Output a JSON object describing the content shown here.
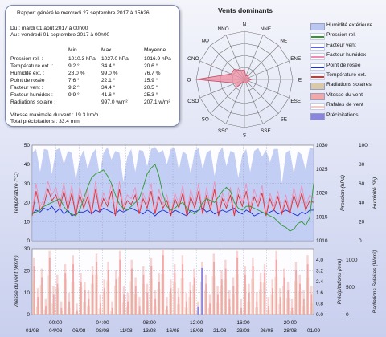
{
  "report": {
    "generated": "Rapport généré le mercredi 27 septembre 2017 à 15h26",
    "from": "Du : mardi 01 août 2017 à 00h00",
    "to": "Au : vendredi 01 septembre 2017 à 00h00",
    "col_min": "Min",
    "col_max": "Max",
    "col_avg": "Moyenne",
    "rows": [
      {
        "label": "Pression rel. :",
        "min": "1010.3 hPa",
        "max": "1027.0 hPa",
        "avg": "1016.9 hPa"
      },
      {
        "label": "Température ext. :",
        "min": "9.2 °",
        "max": "34.4 °",
        "avg": "20.6 °"
      },
      {
        "label": "Humidité ext. :",
        "min": "28.0 %",
        "max": "99.0 %",
        "avg": "76.7 %"
      },
      {
        "label": "Point de rosée :",
        "min": "7.6 °",
        "max": "22.1 °",
        "avg": "15.9 °"
      },
      {
        "label": "Facteur vent :",
        "min": "9.2 °",
        "max": "34.4 °",
        "avg": "20.5 °"
      },
      {
        "label": "Facteur humidex :",
        "min": "9.9 °",
        "max": "41.6 °",
        "avg": "25.3 °"
      },
      {
        "label": "Radiations solaire :",
        "min": "",
        "max": "997.0 w/m²",
        "avg": "207.1 w/m²"
      }
    ],
    "wind_max": "Vitesse maximale du vent : 19.3 km/h",
    "rain_total": "Total précipitations : 33.4 mm"
  },
  "colors": {
    "humidity": "#b9c6f2",
    "pressure": "#2f9a2f",
    "windchill": "#5a63d8",
    "humidex": "#f08cb4",
    "dewpoint": "#1c2fd0",
    "temperature": "#e03030",
    "solar": "#d9c9a6",
    "wind": "#f3a8a8",
    "gusts": "#f6c8c8",
    "rain": "#8a86e0",
    "rose_fill": "#f08ca0"
  },
  "legend": [
    {
      "label": "Humidité extérieure",
      "color": "#b9c6f2",
      "kind": "box"
    },
    {
      "label": "Pression rel.",
      "color": "#2f9a2f",
      "kind": "line"
    },
    {
      "label": "Facteur vent",
      "color": "#5a63d8",
      "kind": "line"
    },
    {
      "label": "Facteur humidex",
      "color": "#f08cb4",
      "kind": "line"
    },
    {
      "label": "Point de rosée",
      "color": "#1c2fd0",
      "kind": "line"
    },
    {
      "label": "Température ext.",
      "color": "#e03030",
      "kind": "line"
    },
    {
      "label": "Radiations solaires",
      "color": "#d9c9a6",
      "kind": "box"
    },
    {
      "label": "Vitesse du vent",
      "color": "#f3a8a8",
      "kind": "box"
    },
    {
      "label": "Rafales de vent",
      "color": "#f6c8c8",
      "kind": "line"
    },
    {
      "label": "Précipitations",
      "color": "#8a86e0",
      "kind": "box"
    }
  ],
  "chart_data": [
    {
      "type": "radar",
      "title": "Vents dominants",
      "categories": [
        "N",
        "NNE",
        "NE",
        "ENE",
        "E",
        "ESE",
        "SE",
        "SSE",
        "S",
        "SSO",
        "SO",
        "OSO",
        "O",
        "ONO",
        "NO",
        "NNO"
      ],
      "values": [
        8,
        3,
        5,
        3,
        6,
        3,
        4,
        3,
        3,
        2,
        10,
        8,
        40,
        12,
        12,
        8
      ],
      "rmax": 40
    },
    {
      "type": "line",
      "x_ticks": [
        "01/08",
        "04/08",
        "06/08",
        "08/08",
        "11/08",
        "13/08",
        "16/08",
        "18/08",
        "21/08",
        "23/08",
        "26/08",
        "28/08",
        "01/09"
      ],
      "x_time_labels": [
        "00:00",
        "04:00",
        "08:00",
        "12:00",
        "16:00",
        "20:00"
      ],
      "y_left": {
        "label": "Température (°C)",
        "range": [
          0,
          50
        ],
        "ticks": [
          "0",
          "10",
          "20",
          "30",
          "40",
          "50"
        ]
      },
      "y_right1": {
        "label": "Pression (hPa)",
        "range": [
          1010,
          1030
        ],
        "ticks": [
          "1010",
          "1015",
          "1020",
          "1025",
          "1030"
        ]
      },
      "y_right2": {
        "label": "Humidité (%)",
        "range": [
          0,
          100
        ],
        "ticks": [
          "0",
          "20",
          "40",
          "60",
          "80",
          "100"
        ]
      },
      "series": [
        {
          "name": "Humidité extérieure",
          "values": [
            92,
            96,
            72,
            96,
            95,
            70,
            95,
            97,
            80,
            94,
            92,
            64,
            86,
            95,
            75,
            90,
            96,
            70,
            92,
            98,
            85,
            94,
            92,
            62,
            88,
            96,
            72,
            95,
            94,
            78,
            96,
            98,
            92,
            95,
            80,
            96,
            97,
            74,
            94,
            90,
            70,
            94,
            97,
            75,
            92,
            95,
            68,
            92,
            98,
            78,
            94,
            92,
            66,
            90,
            96,
            72,
            94,
            97,
            88,
            95,
            82,
            96,
            96,
            60,
            92,
            95,
            70,
            94,
            90,
            74,
            98,
            96
          ]
        },
        {
          "name": "Pression rel.",
          "values": [
            14,
            15,
            16,
            18,
            19,
            20,
            21,
            22,
            18,
            15,
            14,
            13,
            16,
            22,
            28,
            33,
            35,
            36,
            37,
            34,
            30,
            24,
            19,
            17,
            16,
            18,
            20,
            22,
            28,
            35,
            38,
            40,
            34,
            24,
            18,
            16,
            17,
            19,
            20,
            17,
            15,
            14,
            16,
            20,
            22,
            21,
            20,
            23,
            26,
            28,
            26,
            20,
            17,
            16,
            18,
            18,
            17,
            16,
            15,
            14,
            13,
            12,
            10,
            8,
            7,
            5,
            6,
            9,
            10,
            8,
            12,
            30
          ]
        },
        {
          "name": "Température ext.",
          "values": [
            13,
            26,
            16,
            19,
            27,
            21,
            24,
            17,
            26,
            16,
            25,
            13,
            24,
            17,
            23,
            14,
            27,
            15,
            22,
            18,
            26,
            13,
            27,
            16,
            21,
            19,
            24,
            14,
            22,
            17,
            26,
            14,
            23,
            17,
            21,
            13,
            22,
            17,
            25,
            13,
            23,
            17,
            26,
            14,
            24,
            16,
            27,
            13,
            22,
            17,
            24,
            13,
            24,
            18,
            26,
            15,
            23,
            18,
            25,
            13,
            22,
            16,
            23,
            14,
            21,
            14,
            24,
            17,
            25,
            16,
            21,
            20
          ]
        },
        {
          "name": "Point de rosée",
          "values": [
            14,
            16,
            15,
            17,
            16,
            18,
            15,
            17,
            14,
            16,
            13,
            14,
            15,
            15,
            16,
            14,
            16,
            15,
            17,
            16,
            15,
            14,
            16,
            15,
            16,
            17,
            16,
            15,
            14,
            16,
            15,
            13,
            15,
            16,
            15,
            14,
            16,
            15,
            14,
            13,
            16,
            15,
            16,
            17,
            15,
            16,
            14,
            15,
            16,
            15,
            16,
            17,
            15,
            14,
            16,
            15,
            13,
            14,
            15,
            14,
            15,
            16,
            14,
            15,
            16,
            15,
            14,
            13,
            15,
            14,
            16,
            16
          ]
        },
        {
          "name": "Facteur humidex",
          "values": [
            15,
            30,
            18,
            22,
            31,
            24,
            28,
            19,
            30,
            18,
            29,
            14,
            28,
            19,
            27,
            15,
            31,
            17,
            25,
            20,
            30,
            14,
            31,
            18,
            24,
            22,
            28,
            15,
            25,
            19,
            30,
            15,
            27,
            19,
            24,
            14,
            25,
            19,
            29,
            14,
            27,
            19,
            30,
            15,
            28,
            18,
            31,
            14,
            25,
            19,
            28,
            14,
            28,
            20,
            30,
            17,
            27,
            20,
            29,
            14,
            25,
            18,
            26,
            15,
            24,
            15,
            28,
            19,
            29,
            18,
            24,
            22
          ]
        }
      ]
    },
    {
      "type": "bar",
      "y_left": {
        "label": "Vitesse du vent (km/h)",
        "range": [
          0,
          30
        ],
        "ticks": [
          "0",
          "10",
          "20",
          "30"
        ]
      },
      "y_right1": {
        "label": "Précipitations (mm)",
        "range": [
          0,
          4.8
        ],
        "ticks": [
          "0.0",
          "0.8",
          "1.6",
          "2.4",
          "3.2",
          "4.0"
        ]
      },
      "y_right2": {
        "label": "Radiations Solaires (W/m²)",
        "range": [
          0,
          1200
        ],
        "ticks": [
          "0",
          "500",
          "1000"
        ]
      },
      "series": [
        {
          "name": "Vitesse du vent",
          "values": [
            22,
            8,
            17,
            4,
            26,
            9,
            14,
            3,
            19,
            6,
            23,
            2,
            15,
            11,
            7,
            18,
            24,
            5,
            12,
            20,
            3,
            16,
            25,
            9,
            6,
            21,
            13,
            4,
            18,
            10,
            22,
            7,
            15,
            27,
            4,
            12,
            19,
            8,
            23,
            6,
            11,
            17,
            2,
            20,
            14,
            5,
            24,
            9,
            16,
            21,
            7,
            13,
            26,
            3,
            18,
            10,
            22,
            6,
            15,
            19,
            4,
            12,
            25,
            8,
            17,
            11,
            3,
            20,
            14,
            7,
            23,
            9
          ]
        },
        {
          "name": "Rafales de vent",
          "values": [
            26,
            12,
            21,
            7,
            29,
            13,
            18,
            6,
            23,
            10,
            27,
            5,
            19,
            15,
            11,
            22,
            28,
            9,
            16,
            24,
            6,
            20,
            29,
            13,
            10,
            25,
            17,
            8,
            22,
            14,
            26,
            11,
            19,
            30,
            8,
            16,
            23,
            12,
            27,
            10,
            15,
            21,
            6,
            24,
            18,
            9,
            28,
            13,
            20,
            25,
            11,
            17,
            29,
            7,
            22,
            14,
            26,
            10,
            19,
            23,
            8,
            16,
            29,
            12,
            21,
            15,
            7,
            24,
            18,
            11,
            27,
            13
          ]
        },
        {
          "name": "Radiations solaires",
          "values": [
            620,
            150,
            540,
            90,
            710,
            200,
            480,
            60,
            650,
            120,
            590,
            40,
            500,
            230,
            160,
            560,
            720,
            110,
            410,
            620,
            70,
            530,
            690,
            210,
            140,
            610,
            380,
            80,
            560,
            250,
            650,
            160,
            470,
            740,
            90,
            390,
            580,
            190,
            660,
            130,
            320,
            540,
            50,
            600,
            430,
            120,
            700,
            210,
            510,
            640,
            150,
            380,
            730,
            70,
            550,
            240,
            650,
            130,
            460,
            580,
            90,
            360,
            690,
            190,
            520,
            300,
            60,
            610,
            420,
            160,
            670,
            200
          ]
        },
        {
          "name": "Précipitations",
          "values": [
            0,
            0,
            0,
            0,
            0,
            0,
            0,
            0,
            0,
            0,
            0,
            0,
            0,
            0,
            0,
            0,
            0,
            0,
            0,
            0,
            0,
            0,
            0,
            0,
            0,
            0,
            0,
            0,
            0,
            0,
            0,
            0,
            0,
            0,
            0,
            0,
            0,
            0,
            0,
            0,
            0,
            0,
            0.6,
            3.4,
            0,
            0,
            0,
            0,
            0,
            0,
            0,
            0,
            0,
            0,
            0,
            0,
            0,
            0,
            0,
            0,
            0,
            0,
            0,
            0,
            0,
            0,
            0,
            0,
            0,
            0,
            0,
            0
          ]
        }
      ]
    }
  ]
}
